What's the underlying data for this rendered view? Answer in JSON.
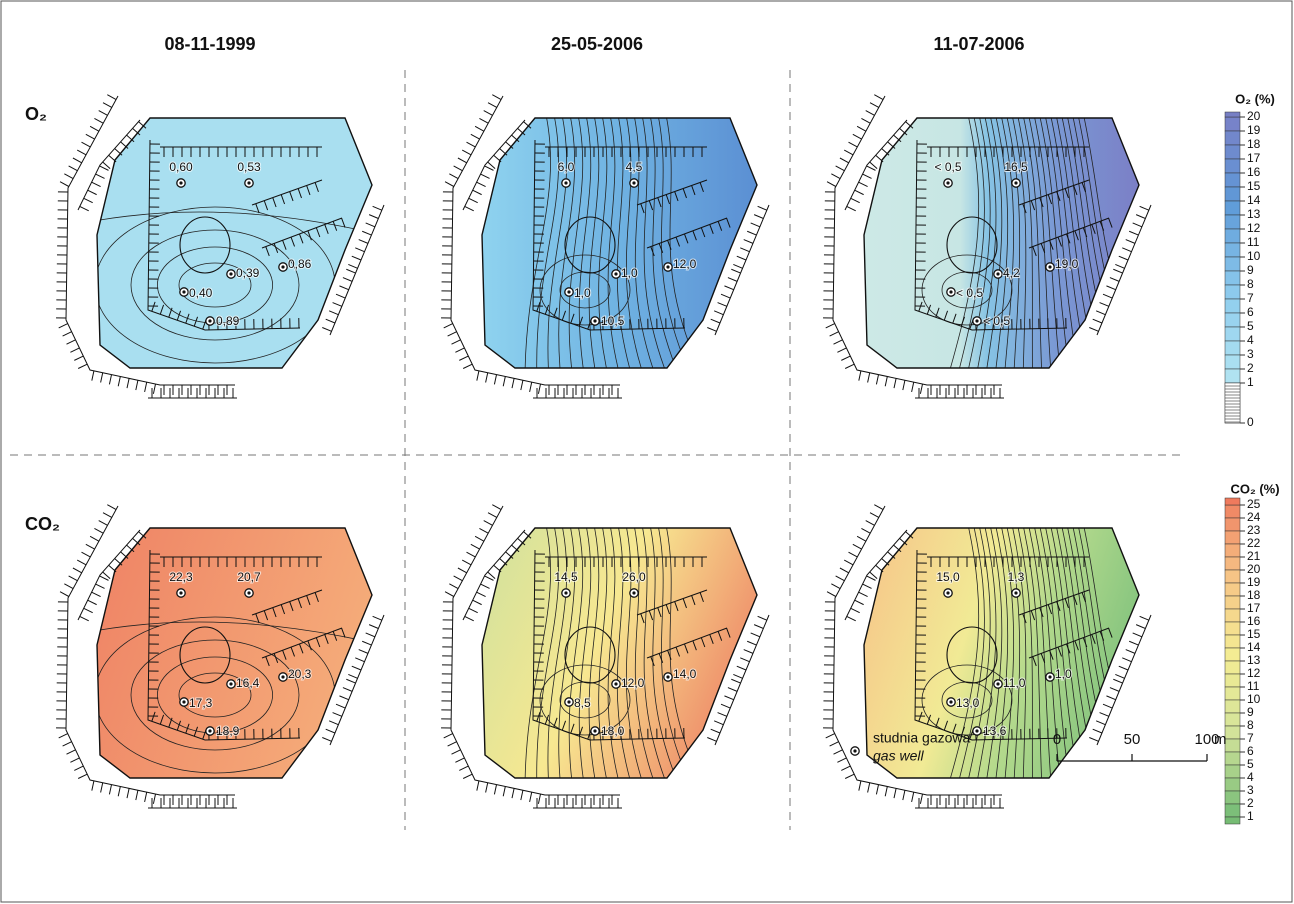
{
  "columns": [
    "08-11-1999",
    "25-05-2006",
    "11-07-2006"
  ],
  "rows": [
    {
      "label": "O₂",
      "legend": {
        "title": "O₂ (%)",
        "ticks": [
          20,
          19,
          18,
          17,
          16,
          15,
          14,
          13,
          12,
          11,
          10,
          9,
          8,
          7,
          6,
          5,
          4,
          3,
          2,
          1,
          0
        ]
      },
      "panels": [
        {
          "wells": [
            "0,60",
            "0,53",
            "0,39",
            "0,86",
            "0,40",
            "0,89"
          ]
        },
        {
          "wells": [
            "6,0",
            "4,5",
            "1,0",
            "12,0",
            "1,0",
            "10,5"
          ]
        },
        {
          "wells": [
            "< 0,5",
            "16,5",
            "4,2",
            "19,0",
            "< 0,5",
            "< 0,5"
          ]
        }
      ]
    },
    {
      "label": "CO₂",
      "legend": {
        "title": "CO₂ (%)",
        "ticks": [
          25,
          24,
          23,
          22,
          21,
          20,
          19,
          18,
          17,
          16,
          15,
          14,
          13,
          12,
          11,
          10,
          9,
          8,
          7,
          6,
          5,
          4,
          3,
          2,
          1
        ]
      },
      "panels": [
        {
          "wells": [
            "22,3",
            "20,7",
            "16,4",
            "20,3",
            "17,3",
            "18,9"
          ]
        },
        {
          "wells": [
            "14,5",
            "26,0",
            "12,0",
            "14,0",
            "8,5",
            "18,0"
          ]
        },
        {
          "wells": [
            "15,0",
            "1,3",
            "11,0",
            "1,0",
            "13,0",
            "13,6"
          ]
        }
      ]
    }
  ],
  "well_legend": {
    "pl": "studnia gazowa",
    "en": "gas well"
  },
  "scale_bar": {
    "ticks": [
      0,
      50,
      100
    ],
    "unit": "m"
  }
}
